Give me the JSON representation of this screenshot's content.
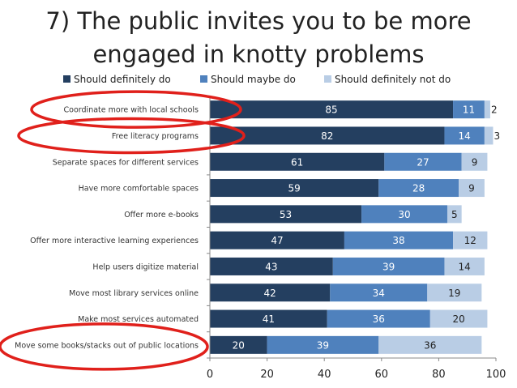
{
  "slide": {
    "title_line1": "7) The public invites you to be more",
    "title_line2": "engaged in knotty problems"
  },
  "chart_data": {
    "type": "bar",
    "orientation": "horizontal",
    "stacked": true,
    "categories": [
      "Coordinate more with local schools",
      "Free literacy programs",
      "Separate spaces for different services",
      "Have more comfortable spaces",
      "Offer more e-books",
      "Offer more interactive learning experiences",
      "Help users digitize material",
      "Move most library services online",
      "Make most services automated",
      "Move some books/stacks out of public locations"
    ],
    "series": [
      {
        "name": "Should definitely do",
        "color": "#243F60",
        "values": [
          85,
          82,
          61,
          59,
          53,
          47,
          43,
          42,
          41,
          20
        ]
      },
      {
        "name": "Should maybe do",
        "color": "#4F81BD",
        "values": [
          11,
          14,
          27,
          28,
          30,
          38,
          39,
          34,
          36,
          39
        ]
      },
      {
        "name": "Should definitely not do",
        "color": "#B9CDE5",
        "values": [
          2,
          3,
          9,
          9,
          5,
          12,
          14,
          19,
          20,
          36
        ]
      }
    ],
    "xlim": [
      0,
      100
    ],
    "xticks": [
      0,
      20,
      40,
      60,
      80,
      100
    ],
    "legend_position": "top",
    "grid": false,
    "highlighted_categories": [
      "Coordinate more with local schools",
      "Free literacy programs",
      "Move some books/stacks out of public locations"
    ],
    "highlight_color": "#E0201B"
  }
}
